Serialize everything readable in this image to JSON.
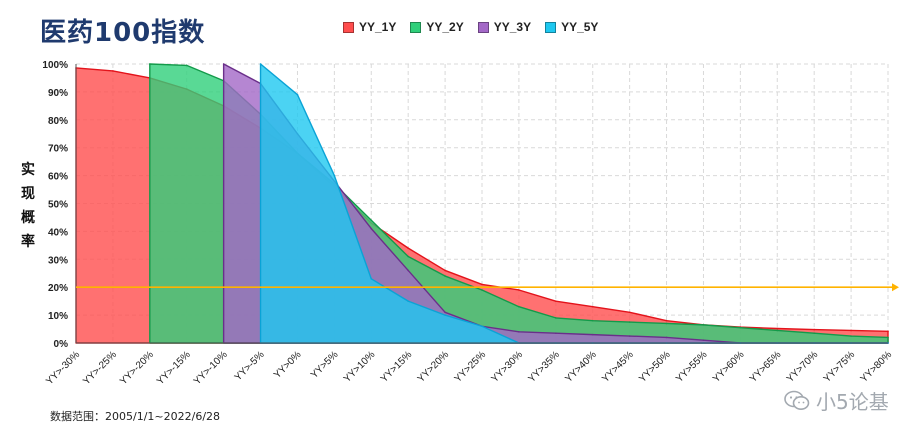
{
  "chart_data": {
    "type": "area",
    "title": "医药100指数",
    "ylabel": "实现概率",
    "categories": [
      "YY>-30%",
      "YY>-25%",
      "YY>-20%",
      "YY>-15%",
      "YY>-10%",
      "YY>-5%",
      "YY>0%",
      "YY>5%",
      "YY>10%",
      "YY>15%",
      "YY>20%",
      "YY>25%",
      "YY>30%",
      "YY>35%",
      "YY>40%",
      "YY>45%",
      "YY>50%",
      "YY>55%",
      "YY>60%",
      "YY>65%",
      "YY>70%",
      "YY>75%",
      "YY>80%"
    ],
    "ylim": [
      0,
      100
    ],
    "yticks": [
      "0%",
      "10%",
      "20%",
      "30%",
      "40%",
      "50%",
      "60%",
      "70%",
      "80%",
      "90%",
      "100%"
    ],
    "grid": true,
    "legend_position": "top",
    "reference_line": {
      "y": 20,
      "color": "#ffb300"
    },
    "series": [
      {
        "name": "YY_1Y",
        "fill": "#ff4d4d",
        "stroke": "#e3131b",
        "values": [
          98.6,
          97.5,
          95,
          91,
          85,
          77,
          68,
          56,
          43,
          34,
          26,
          21,
          19,
          15,
          13,
          11,
          8,
          6.5,
          5.7,
          5.2,
          4.8,
          4.5,
          4.2
        ]
      },
      {
        "name": "YY_2Y",
        "fill": "#2fcf7a",
        "stroke": "#139a4a",
        "values": [
          null,
          null,
          100,
          99.5,
          94,
          82,
          68,
          57,
          44,
          31,
          24,
          19,
          13,
          9,
          8,
          7.5,
          7,
          6.5,
          5.5,
          4.5,
          3.5,
          2.5,
          2
        ]
      },
      {
        "name": "YY_3Y",
        "fill": "#a368c7",
        "stroke": "#6a2f8a",
        "values": [
          null,
          null,
          null,
          null,
          100,
          93,
          75,
          58,
          41,
          26,
          11,
          6,
          4,
          3.5,
          3,
          2.5,
          2,
          1,
          0,
          0,
          0,
          0,
          0
        ]
      },
      {
        "name": "YY_5Y",
        "fill": "#1ec8f0",
        "stroke": "#0aa3d6",
        "values": [
          null,
          null,
          null,
          null,
          null,
          100,
          89,
          60,
          23,
          15,
          10,
          6,
          0,
          0,
          0,
          0,
          0,
          0,
          0,
          0,
          0,
          0,
          0
        ]
      }
    ],
    "footnote": "数据范围：2005/1/1~2022/6/28"
  },
  "watermark": {
    "text": "小5论基",
    "icon": "wechat-icon"
  }
}
